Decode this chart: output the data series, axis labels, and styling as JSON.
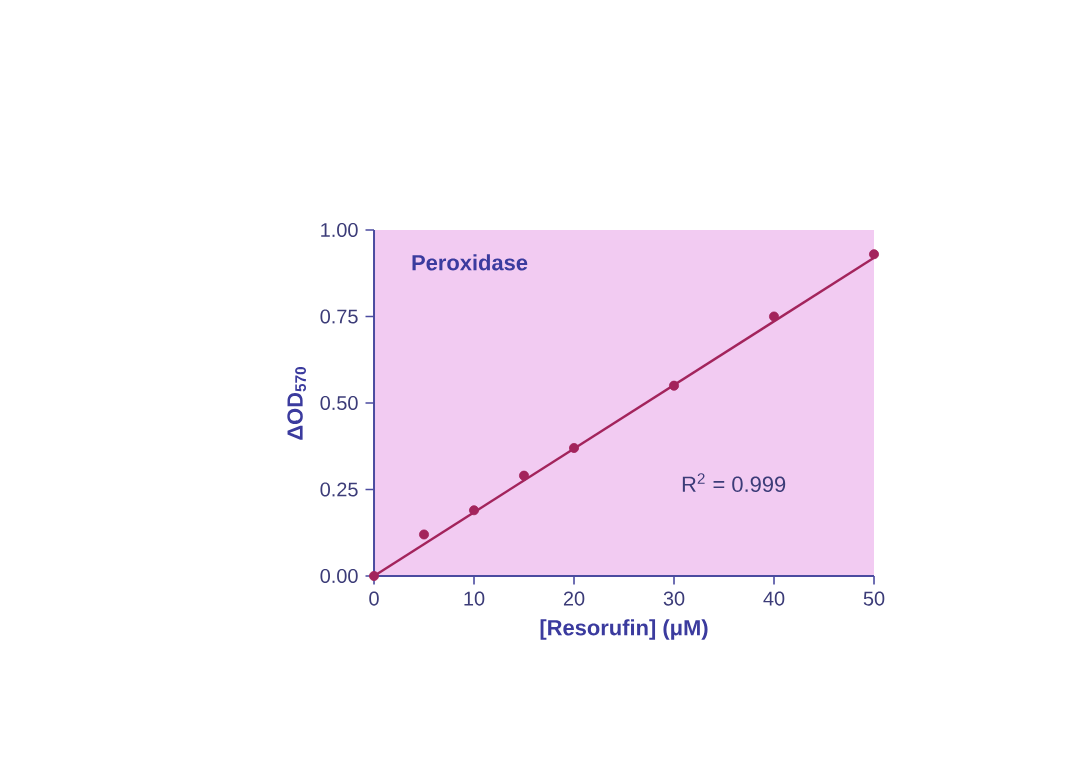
{
  "chart_data": {
    "type": "scatter",
    "title": "Peroxidase",
    "xlabel": "[Resorufin] (μM)",
    "ylabel": "ΔOD$_{570}$",
    "annotations": [
      "R$^{2}$ = 0.999"
    ],
    "series": [
      {
        "color": "#a3245c",
        "marker": "circle",
        "x": [
          0,
          5,
          10,
          15,
          20,
          30,
          40,
          50
        ],
        "values": [
          0.0,
          0.12,
          0.19,
          0.29,
          0.37,
          0.55,
          0.75,
          0.93
        ]
      },
      {
        "type": "line",
        "color": "#a3245c",
        "marker": "none",
        "line_style": "solid",
        "x": [
          0,
          50
        ],
        "values": [
          0.0,
          0.92
        ]
      }
    ],
    "xlim": [
      0,
      50
    ],
    "ylim": [
      0,
      1
    ],
    "xticks": [
      0,
      10,
      20,
      30,
      40,
      50
    ],
    "yticks": [
      {
        "value": 0,
        "label": "0.00"
      },
      {
        "value": 0.25,
        "label": "0.25"
      },
      {
        "value": 0.5,
        "label": "0.50"
      },
      {
        "value": 0.75,
        "label": "0.75"
      },
      {
        "value": 1,
        "label": "1.00"
      }
    ],
    "grid": false
  }
}
